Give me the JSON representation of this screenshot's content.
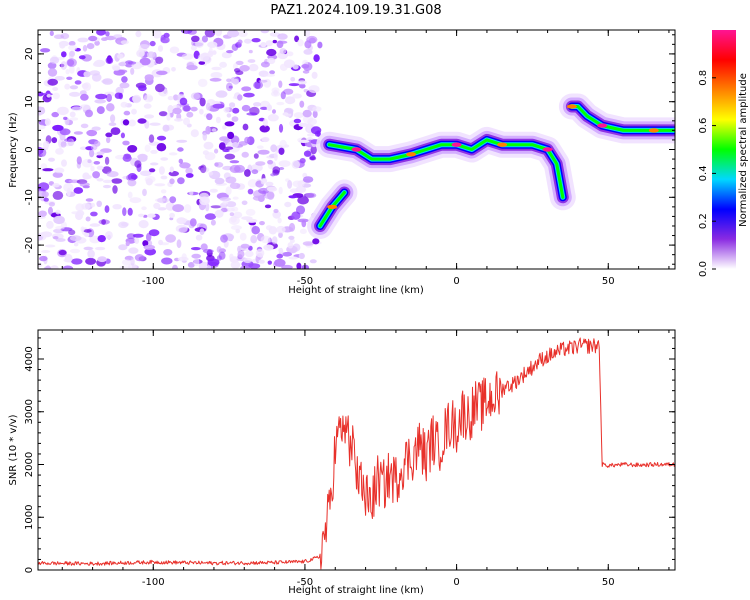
{
  "title": "PAZ1.2024.109.19.31.G08",
  "colors": {
    "snr_line": "#e8302a",
    "scatter_violet": "#8a2be2",
    "axis": "#000000"
  },
  "chart_data": [
    {
      "type": "heatmap",
      "xlabel": "Height of straight line (km)",
      "ylabel": "Frequency (Hz)",
      "xlim": [
        -138,
        72
      ],
      "ylim": [
        -25,
        25
      ],
      "xticks": [
        -100,
        -50,
        0,
        50
      ],
      "yticks": [
        20,
        10,
        0,
        -10,
        -20
      ],
      "colorbar": {
        "label": "Normalized spectral amplitude",
        "range": [
          0,
          1
        ],
        "ticks": [
          0.0,
          0.2,
          0.4,
          0.6,
          0.8
        ],
        "colormap": [
          "#ffffff",
          "#8a2be2",
          "#0000ff",
          "#00d8ff",
          "#00ff00",
          "#ffff00",
          "#ff8000",
          "#ff0000",
          "#ff1493"
        ]
      },
      "noise_region": {
        "x": [
          -138,
          -45
        ],
        "y": [
          -25,
          25
        ]
      },
      "ridge": [
        {
          "x": -45,
          "y": -16
        },
        {
          "x": -41,
          "y": -12
        },
        {
          "x": -37,
          "y": -9
        },
        {
          "x": -42,
          "y": 1
        },
        {
          "x": -33,
          "y": 0
        },
        {
          "x": -28,
          "y": -2
        },
        {
          "x": -22,
          "y": -2
        },
        {
          "x": -15,
          "y": -1
        },
        {
          "x": -10,
          "y": 0
        },
        {
          "x": -5,
          "y": 1
        },
        {
          "x": 0,
          "y": 1
        },
        {
          "x": 5,
          "y": 0
        },
        {
          "x": 10,
          "y": 2
        },
        {
          "x": 15,
          "y": 1
        },
        {
          "x": 20,
          "y": 1
        },
        {
          "x": 25,
          "y": 1
        },
        {
          "x": 30,
          "y": 0
        },
        {
          "x": 33,
          "y": -3
        },
        {
          "x": 35,
          "y": -10
        },
        {
          "x": 38,
          "y": 9
        },
        {
          "x": 40,
          "y": 9
        },
        {
          "x": 43,
          "y": 7
        },
        {
          "x": 48,
          "y": 5
        },
        {
          "x": 55,
          "y": 4
        },
        {
          "x": 60,
          "y": 4
        },
        {
          "x": 65,
          "y": 4
        },
        {
          "x": 72,
          "y": 4
        }
      ]
    },
    {
      "type": "line",
      "xlabel": "Height of straight line (km)",
      "ylabel": "SNR (10 * v/v)",
      "xlim": [
        -138,
        72
      ],
      "ylim": [
        0,
        4550
      ],
      "xticks": [
        -100,
        -50,
        0,
        50
      ],
      "yticks": [
        0,
        1000,
        2000,
        3000,
        4000
      ],
      "series": [
        {
          "x": [
            -138,
            -120,
            -100,
            -80,
            -60,
            -50,
            -45,
            -42,
            -40,
            -38,
            -36,
            -34,
            -32,
            -30,
            -28,
            -26,
            -24,
            -22,
            -20,
            -18,
            -16,
            -14,
            -12,
            -10,
            -8,
            -6,
            -4,
            -2,
            0,
            2,
            4,
            6,
            8,
            10,
            12,
            14,
            16,
            18,
            20,
            22,
            24,
            26,
            28,
            30,
            32,
            34,
            36,
            38,
            40,
            42,
            44,
            46,
            47,
            48,
            50,
            55,
            60,
            65,
            72
          ],
          "y": [
            130,
            120,
            150,
            130,
            140,
            160,
            250,
            1100,
            2300,
            2800,
            2600,
            2200,
            1700,
            1400,
            1300,
            1700,
            1600,
            1800,
            1700,
            2000,
            2100,
            2200,
            2400,
            2100,
            2500,
            2300,
            2600,
            2800,
            2700,
            3000,
            2900,
            3100,
            3100,
            3200,
            3300,
            3300,
            3500,
            3500,
            3600,
            3700,
            3800,
            3900,
            4000,
            4050,
            4100,
            4150,
            4200,
            4200,
            4250,
            4250,
            4250,
            4250,
            4250,
            2000,
            1980,
            2000,
            1990,
            2000,
            2000
          ]
        }
      ]
    }
  ]
}
